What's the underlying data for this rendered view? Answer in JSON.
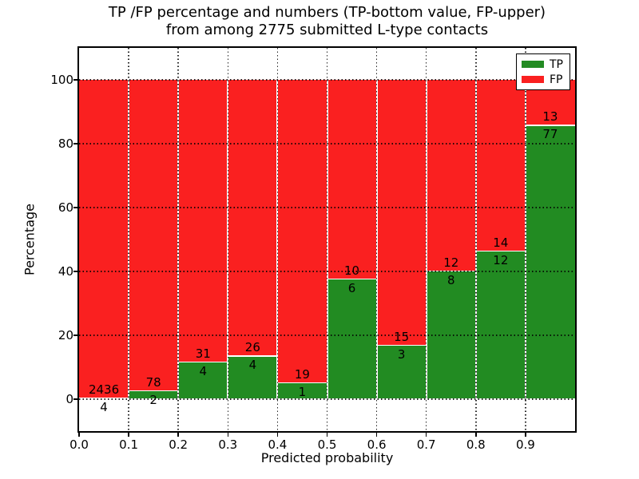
{
  "figure": {
    "title_line1": "TP /FP percentage and numbers (TP-bottom value, FP-upper)",
    "title_line2": "from among 2775 submitted L-type contacts",
    "xlabel": "Predicted probability",
    "ylabel": "Percentage"
  },
  "legend": {
    "items": [
      {
        "label": "TP",
        "color": "#228b22"
      },
      {
        "label": "FP",
        "color": "#fa2020"
      }
    ]
  },
  "chart_data": {
    "type": "bar",
    "subtype": "stacked-percentage-histogram",
    "title": "TP /FP percentage and numbers (TP-bottom value, FP-upper) from among 2775 submitted L-type contacts",
    "xlabel": "Predicted probability",
    "ylabel": "Percentage",
    "total_contacts": 2775,
    "bin_edges": [
      0.0,
      0.1,
      0.2,
      0.3,
      0.4,
      0.5,
      0.6,
      0.7,
      0.8,
      0.9,
      1.0
    ],
    "x_tick_labels": [
      "0.0",
      "0.1",
      "0.2",
      "0.3",
      "0.4",
      "0.5",
      "0.6",
      "0.7",
      "0.8",
      "0.9"
    ],
    "y_ticks": [
      0,
      20,
      40,
      60,
      80,
      100
    ],
    "xlim": [
      0.0,
      1.0
    ],
    "ylim": [
      -10,
      110
    ],
    "grid": true,
    "grid_style": "dotted",
    "legend_position": "upper right",
    "bar_edge_color": "#ffffff",
    "series": [
      {
        "name": "TP",
        "color": "#228b22",
        "counts": [
          4,
          2,
          4,
          4,
          1,
          6,
          3,
          8,
          12,
          77
        ]
      },
      {
        "name": "FP",
        "color": "#fa2020",
        "counts": [
          2436,
          78,
          31,
          26,
          19,
          10,
          15,
          12,
          14,
          13
        ]
      }
    ],
    "note": "Each bin stacked to 100%. TP% = TP/(TP+FP)*100; TP count printed below segment top, FP count printed above it."
  }
}
